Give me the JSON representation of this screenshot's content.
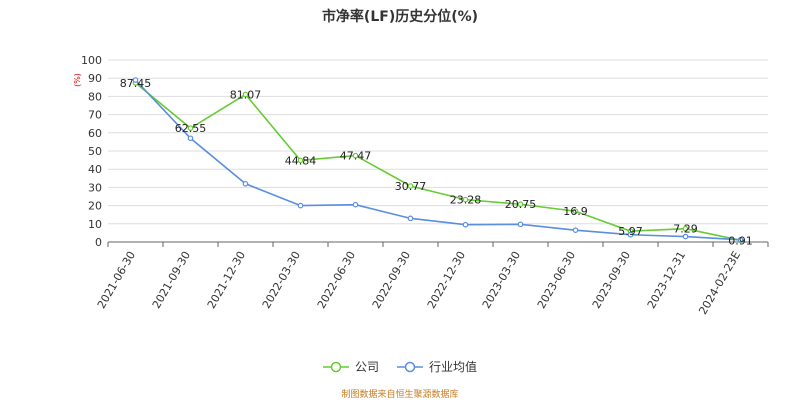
{
  "chart_data": {
    "type": "line",
    "title": "市净率(LF)历史分位(%)",
    "unit_label": "(%)",
    "categories": [
      "2021-06-30",
      "2021-09-30",
      "2021-12-30",
      "2022-03-30",
      "2022-06-30",
      "2022-09-30",
      "2022-12-30",
      "2023-03-30",
      "2023-06-30",
      "2023-09-30",
      "2023-12-31",
      "2024-02-23E"
    ],
    "ylim": [
      0,
      100
    ],
    "yticks": [
      0,
      10,
      20,
      30,
      40,
      50,
      60,
      70,
      80,
      90,
      100
    ],
    "grid": true,
    "legend_position": "bottom-center",
    "series": [
      {
        "name": "公司",
        "color": "#66cc33",
        "values": [
          87.45,
          62.55,
          81.07,
          44.84,
          47.47,
          30.77,
          23.28,
          20.75,
          16.9,
          5.97,
          7.29,
          0.91
        ],
        "labels": [
          "87.45",
          "62.55",
          "81.07",
          "44.84",
          "47.47",
          "30.77",
          "23.28",
          "20.75",
          "16.9",
          "5.97",
          "7.29",
          "0.91"
        ]
      },
      {
        "name": "行业均值",
        "color": "#5b8ee0",
        "values": [
          89,
          57,
          32,
          20,
          20.5,
          13,
          9.5,
          9.7,
          6.5,
          4,
          3,
          1.2
        ]
      }
    ]
  },
  "legend": {
    "company": "公司",
    "industry": "行业均值"
  },
  "source_note": "制图数据来自恒生聚源数据库"
}
